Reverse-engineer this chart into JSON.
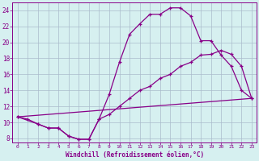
{
  "xlabel": "Windchill (Refroidissement éolien,°C)",
  "bg_color": "#d6f0f0",
  "line_color": "#880088",
  "grid_color": "#aabbcc",
  "xlim": [
    -0.5,
    23.5
  ],
  "ylim": [
    7.5,
    25.0
  ],
  "yticks": [
    8,
    10,
    12,
    14,
    16,
    18,
    20,
    22,
    24
  ],
  "xticks": [
    0,
    1,
    2,
    3,
    4,
    5,
    6,
    7,
    8,
    9,
    10,
    11,
    12,
    13,
    14,
    15,
    16,
    17,
    18,
    19,
    20,
    21,
    22,
    23
  ],
  "curve1_x": [
    0,
    1,
    2,
    3,
    4,
    5,
    6,
    7,
    8,
    9,
    10,
    11,
    12,
    13,
    14,
    15,
    16,
    17,
    18,
    19,
    20,
    21,
    22,
    23
  ],
  "curve1_y": [
    10.7,
    10.4,
    9.8,
    9.3,
    9.3,
    8.3,
    7.9,
    7.9,
    10.4,
    13.5,
    17.5,
    21.0,
    22.3,
    23.5,
    23.5,
    24.3,
    24.3,
    23.3,
    20.2,
    20.2,
    18.4,
    17.0,
    14.0,
    13.0
  ],
  "curve2_x": [
    0,
    2,
    3,
    4,
    5,
    6,
    7,
    8,
    9,
    10,
    11,
    12,
    13,
    14,
    15,
    16,
    17,
    18,
    19,
    20,
    21,
    22,
    23
  ],
  "curve2_y": [
    10.7,
    9.8,
    9.3,
    9.3,
    8.3,
    7.9,
    7.9,
    10.4,
    11.0,
    12.0,
    13.0,
    14.0,
    14.5,
    15.5,
    16.0,
    17.0,
    17.5,
    18.4,
    18.5,
    19.0,
    18.5,
    17.0,
    13.0
  ],
  "curve3_x": [
    0,
    23
  ],
  "curve3_y": [
    10.7,
    13.0
  ]
}
